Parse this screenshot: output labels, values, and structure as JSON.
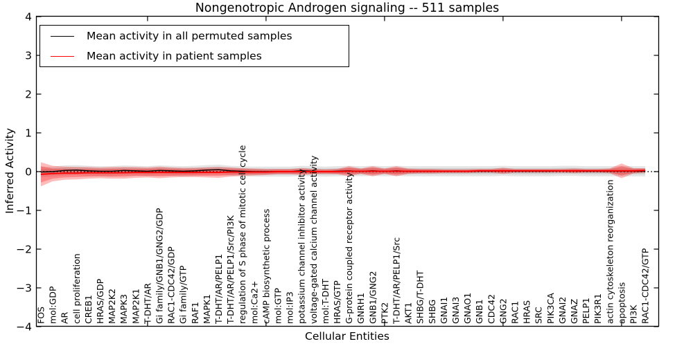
{
  "chart_data": {
    "type": "line",
    "title": "Nongenotropic Androgen signaling -- 511 samples",
    "xlabel": "Cellular Entities",
    "ylabel": "Inferred Activity",
    "ylim": [
      -4,
      4
    ],
    "yticks": [
      4,
      3,
      2,
      1,
      0,
      -1,
      -2,
      -3,
      -4
    ],
    "ytick_labels": [
      "4",
      "3",
      "2",
      "1",
      "0",
      "−1",
      "−2",
      "−3",
      "−4"
    ],
    "xtick_positions": [
      10,
      20,
      30,
      40,
      50
    ],
    "grid": false,
    "legend_position": "upper left",
    "zero_line_style": "dotted",
    "categories": [
      "FOS",
      "mol:GDP",
      "AR",
      "cell proliferation",
      "CREB1",
      "HRAS/GDP",
      "MAP2K2",
      "MAPK3",
      "MAP2K1",
      "T-DHT/AR",
      "Gi family/GNB1/GNG2/GDP",
      "RAC1-CDC42/GDP",
      "Gi family/GTP",
      "RAF1",
      "MAPK1",
      "T-DHT/AR/PELP1",
      "T-DHT/AR/PELP1/Src/PI3K",
      "regulation of S phase of mitotic cell cycle",
      "mol:Ca2+",
      "cAMP biosynthetic process",
      "mol:GTP",
      "mol:IP3",
      "potassium channel inhibitor activity",
      "voltage-gated calcium channel activity",
      "mol:T-DHT",
      "HRAS/GTP",
      "G-protein coupled receptor activity",
      "GNRH1",
      "GNB1/GNG2",
      "PTK2",
      "T-DHT/AR/PELP1/Src",
      "AKT1",
      "SHBG/T-DHT",
      "SHBG",
      "GNAI1",
      "GNAI3",
      "GNAO1",
      "GNB1",
      "CDC42",
      "GNG2",
      "RAC1",
      "HRAS",
      "SRC",
      "PIK3CA",
      "GNAI2",
      "GNAZ",
      "PELP1",
      "PIK3R1",
      "actin cytoskeleton reorganization",
      "apoptosis",
      "PI3K",
      "RAC1-CDC42/GTP"
    ],
    "series": [
      {
        "name": "Mean activity in all permuted samples",
        "color": "#000000",
        "band_color": "rgba(0,0,0,0.10)",
        "band_outer": 0.13,
        "band_inner": 0.075,
        "values": [
          -0.01,
          0.0,
          0.03,
          0.04,
          0.02,
          0.01,
          0.01,
          0.03,
          0.02,
          0.01,
          0.03,
          0.02,
          0.01,
          0.02,
          0.04,
          0.05,
          0.02,
          0.01,
          0.0,
          0.0,
          0.0,
          0.0,
          0.02,
          0.01,
          0.0,
          0.01,
          0.02,
          0.01,
          0.02,
          0.01,
          0.02,
          0.01,
          0.01,
          0.01,
          0.01,
          0.01,
          0.01,
          0.01,
          0.01,
          0.02,
          0.01,
          0.01,
          0.01,
          0.01,
          0.02,
          0.02,
          0.01,
          0.01,
          0.01,
          0.01,
          0.01,
          0.01
        ]
      },
      {
        "name": "Mean activity in patient samples",
        "color": "#ff0000",
        "band_color": "rgba(255,0,0,0.27)",
        "band_outer": [
          0.31,
          0.2,
          0.17,
          0.16,
          0.15,
          0.14,
          0.15,
          0.15,
          0.14,
          0.13,
          0.15,
          0.13,
          0.12,
          0.12,
          0.13,
          0.14,
          0.12,
          0.1,
          0.09,
          0.08,
          0.07,
          0.07,
          0.09,
          0.07,
          0.06,
          0.07,
          0.13,
          0.07,
          0.13,
          0.07,
          0.13,
          0.07,
          0.06,
          0.06,
          0.05,
          0.05,
          0.05,
          0.05,
          0.05,
          0.08,
          0.05,
          0.05,
          0.05,
          0.05,
          0.05,
          0.06,
          0.05,
          0.05,
          0.06,
          0.19,
          0.07,
          0.06
        ],
        "band_inner": [
          0.21,
          0.13,
          0.11,
          0.1,
          0.1,
          0.09,
          0.1,
          0.1,
          0.09,
          0.09,
          0.1,
          0.09,
          0.08,
          0.08,
          0.09,
          0.09,
          0.08,
          0.07,
          0.06,
          0.05,
          0.05,
          0.05,
          0.06,
          0.05,
          0.04,
          0.05,
          0.09,
          0.05,
          0.09,
          0.05,
          0.09,
          0.05,
          0.04,
          0.04,
          0.03,
          0.03,
          0.03,
          0.03,
          0.03,
          0.05,
          0.03,
          0.03,
          0.03,
          0.03,
          0.03,
          0.04,
          0.03,
          0.03,
          0.04,
          0.12,
          0.05,
          0.04
        ],
        "values": [
          -0.07,
          -0.05,
          -0.04,
          -0.04,
          -0.03,
          -0.03,
          -0.03,
          -0.03,
          -0.02,
          -0.02,
          -0.02,
          -0.02,
          -0.02,
          -0.02,
          -0.02,
          -0.02,
          -0.01,
          -0.01,
          -0.01,
          -0.01,
          0.0,
          0.0,
          0.0,
          0.0,
          0.0,
          0.0,
          0.01,
          0.01,
          0.01,
          0.01,
          0.01,
          0.01,
          0.01,
          0.01,
          0.01,
          0.01,
          0.01,
          0.02,
          0.02,
          0.02,
          0.02,
          0.02,
          0.02,
          0.02,
          0.02,
          0.02,
          0.02,
          0.02,
          0.02,
          0.02,
          0.02,
          0.03
        ]
      }
    ]
  }
}
